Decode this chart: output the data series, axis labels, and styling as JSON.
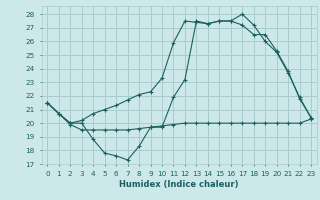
{
  "xlabel": "Humidex (Indice chaleur)",
  "bg_color": "#cde8e8",
  "grid_color": "#aacccc",
  "line_color": "#1a6060",
  "xlim": [
    -0.5,
    23.5
  ],
  "ylim": [
    17,
    28.6
  ],
  "yticks": [
    17,
    18,
    19,
    20,
    21,
    22,
    23,
    24,
    25,
    26,
    27,
    28
  ],
  "xticks": [
    0,
    1,
    2,
    3,
    4,
    5,
    6,
    7,
    8,
    9,
    10,
    11,
    12,
    13,
    14,
    15,
    16,
    17,
    18,
    19,
    20,
    21,
    22,
    23
  ],
  "series1_x": [
    0,
    1,
    2,
    3,
    4,
    5,
    6,
    7,
    8,
    9,
    10,
    11,
    12,
    13,
    14,
    15,
    16,
    17,
    18,
    19,
    20,
    21,
    22,
    23
  ],
  "series1_y": [
    21.5,
    20.7,
    19.9,
    19.5,
    19.5,
    19.5,
    19.5,
    19.5,
    19.6,
    19.7,
    19.8,
    19.9,
    20.0,
    20.0,
    20.0,
    20.0,
    20.0,
    20.0,
    20.0,
    20.0,
    20.0,
    20.0,
    20.0,
    20.3
  ],
  "series2_x": [
    0,
    1,
    2,
    3,
    4,
    5,
    6,
    7,
    8,
    9,
    10,
    11,
    12,
    13,
    14,
    15,
    16,
    17,
    18,
    19,
    20,
    21,
    22,
    23
  ],
  "series2_y": [
    21.5,
    20.7,
    20.0,
    20.2,
    20.7,
    21.0,
    21.3,
    21.7,
    22.1,
    22.3,
    23.3,
    25.9,
    27.5,
    27.4,
    27.3,
    27.5,
    27.5,
    28.0,
    27.2,
    26.0,
    25.2,
    23.7,
    21.9,
    20.4
  ],
  "series3_x": [
    0,
    1,
    2,
    3,
    4,
    5,
    6,
    7,
    8,
    9,
    10,
    11,
    12,
    13,
    14,
    15,
    16,
    17,
    18,
    19,
    20,
    21,
    22,
    23
  ],
  "series3_y": [
    21.5,
    20.7,
    20.0,
    20.0,
    18.8,
    17.8,
    17.6,
    17.3,
    18.3,
    19.7,
    19.7,
    21.9,
    23.2,
    27.5,
    27.3,
    27.5,
    27.5,
    27.2,
    26.5,
    26.5,
    25.3,
    23.8,
    21.8,
    20.4
  ]
}
